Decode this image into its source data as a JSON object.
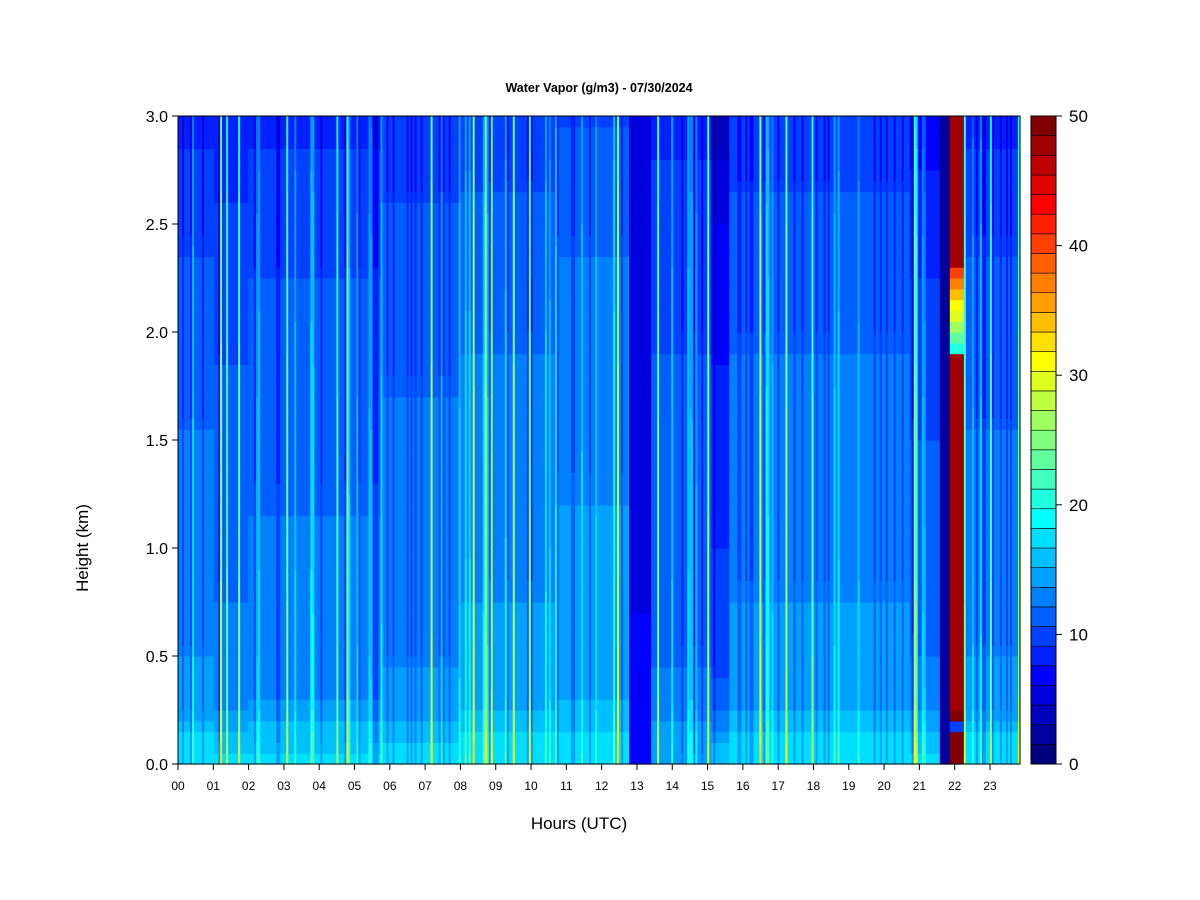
{
  "chart_data": {
    "type": "heatmap",
    "title": "Water Vapor (g/m3) - 07/30/2024",
    "xlabel": "Hours (UTC)",
    "ylabel": "Height (km)",
    "xlim": [
      0,
      23.85
    ],
    "ylim": [
      0,
      3.0
    ],
    "x_ticks": [
      "00",
      "01",
      "02",
      "03",
      "04",
      "05",
      "06",
      "07",
      "08",
      "09",
      "10",
      "11",
      "12",
      "13",
      "14",
      "15",
      "16",
      "17",
      "18",
      "19",
      "20",
      "21",
      "22",
      "23"
    ],
    "y_ticks": [
      "0.0",
      "0.5",
      "1.0",
      "1.5",
      "2.0",
      "2.5",
      "3.0"
    ],
    "colorbar": {
      "min": 0,
      "max": 50,
      "levels": 25,
      "tick_labels": [
        "0",
        "10",
        "20",
        "30",
        "40",
        "50"
      ],
      "colors": [
        "#00007f",
        "#00009f",
        "#0000bf",
        "#0000df",
        "#0000ff",
        "#0020ff",
        "#0040ff",
        "#0060ff",
        "#0080ff",
        "#00a0ff",
        "#00c0ff",
        "#00dfff",
        "#00ffff",
        "#20ffdf",
        "#40ffbf",
        "#60ff9f",
        "#80ff7f",
        "#9fff60",
        "#bfff40",
        "#dfff20",
        "#ffff00",
        "#ffdf00",
        "#ffbf00",
        "#ff9f00",
        "#ff8000",
        "#ff6000",
        "#ff4000",
        "#ff2000",
        "#ff0000",
        "#df0000",
        "#bf0000",
        "#9f0000",
        "#7f0000"
      ]
    },
    "height_profile": {
      "heights_km": [
        0.0,
        0.1,
        0.2,
        0.3,
        0.5,
        0.75,
        1.0,
        1.5,
        2.0,
        2.5,
        2.75,
        3.0
      ],
      "typical_g_m3": [
        18,
        17,
        15,
        13.5,
        13,
        12.5,
        12,
        11.5,
        10.5,
        9.5,
        8.5,
        7.5
      ]
    },
    "time_segments": [
      {
        "hours": [
          0.0,
          1.0
        ],
        "surface": 18,
        "aloft": 8
      },
      {
        "hours": [
          1.0,
          2.0
        ],
        "surface": 17,
        "aloft": 7
      },
      {
        "hours": [
          2.0,
          4.3
        ],
        "surface": 17,
        "aloft": 8
      },
      {
        "hours": [
          4.3,
          5.8
        ],
        "surface": 17,
        "aloft": 8
      },
      {
        "hours": [
          5.8,
          8.0
        ],
        "surface": 17,
        "aloft": 9
      },
      {
        "hours": [
          8.0,
          10.7
        ],
        "surface": 18,
        "aloft": 9
      },
      {
        "hours": [
          10.7,
          12.8
        ],
        "surface": 18,
        "aloft": 10
      },
      {
        "hours": [
          12.8,
          13.4
        ],
        "surface": 7,
        "aloft": 4
      },
      {
        "hours": [
          13.4,
          15.1
        ],
        "surface": 15,
        "aloft": 8
      },
      {
        "hours": [
          15.1,
          15.6
        ],
        "surface": 16,
        "aloft": 3
      },
      {
        "hours": [
          15.6,
          18.5
        ],
        "surface": 18,
        "aloft": 9
      },
      {
        "hours": [
          18.5,
          20.7
        ],
        "surface": 18,
        "aloft": 9
      },
      {
        "hours": [
          20.7,
          21.6
        ],
        "surface": 17,
        "aloft": 6
      },
      {
        "hours": [
          21.6,
          21.85
        ],
        "surface": 2,
        "aloft": 1
      },
      {
        "hours": [
          21.85,
          22.25
        ],
        "surface": 50,
        "aloft": 48
      },
      {
        "hours": [
          22.25,
          23.85
        ],
        "surface": 18,
        "aloft": 8
      }
    ]
  }
}
